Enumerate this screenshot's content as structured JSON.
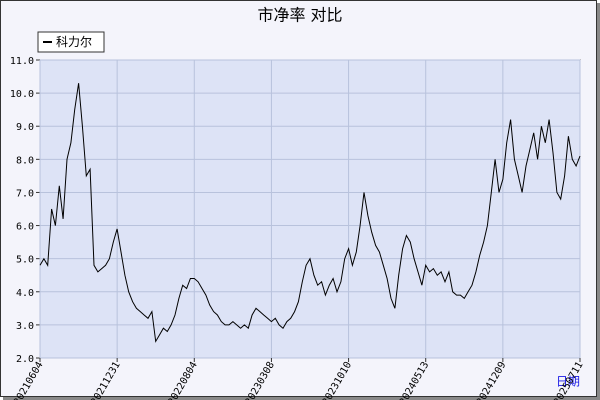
{
  "chart_data": {
    "type": "line",
    "title": "市净率  对比",
    "x_label": "日期",
    "categories": [
      "20210604",
      null,
      null,
      null,
      null,
      null,
      null,
      null,
      null,
      null,
      null,
      null,
      null,
      null,
      null,
      null,
      null,
      null,
      null,
      null,
      "20211231",
      null,
      null,
      null,
      null,
      null,
      null,
      null,
      null,
      null,
      null,
      null,
      null,
      null,
      null,
      null,
      null,
      null,
      null,
      null,
      "20220804",
      null,
      null,
      null,
      null,
      null,
      null,
      null,
      null,
      null,
      null,
      null,
      null,
      null,
      null,
      null,
      null,
      null,
      null,
      null,
      "20230308",
      null,
      null,
      null,
      null,
      null,
      null,
      null,
      null,
      null,
      null,
      null,
      null,
      null,
      null,
      null,
      null,
      null,
      null,
      null,
      "20231010",
      null,
      null,
      null,
      null,
      null,
      null,
      null,
      null,
      null,
      null,
      null,
      null,
      null,
      null,
      null,
      null,
      null,
      null,
      null,
      "20240513",
      null,
      null,
      null,
      null,
      null,
      null,
      null,
      null,
      null,
      null,
      null,
      null,
      null,
      null,
      null,
      null,
      null,
      null,
      null,
      "20241209",
      null,
      null,
      null,
      null,
      null,
      null,
      null,
      null,
      null,
      null,
      null,
      null,
      null,
      null,
      null,
      null,
      null,
      null,
      null,
      "20250711"
    ],
    "series": [
      {
        "name": "科力尔",
        "color": "#000000",
        "values": [
          4.8,
          5.0,
          4.8,
          6.5,
          6.0,
          7.2,
          6.2,
          8.0,
          8.5,
          9.5,
          10.3,
          9.0,
          7.5,
          7.7,
          4.8,
          4.6,
          4.7,
          4.8,
          5.0,
          5.5,
          5.9,
          5.2,
          4.5,
          4.0,
          3.7,
          3.5,
          3.4,
          3.3,
          3.2,
          3.4,
          2.5,
          2.7,
          2.9,
          2.8,
          3.0,
          3.3,
          3.8,
          4.2,
          4.1,
          4.4,
          4.4,
          4.3,
          4.1,
          3.9,
          3.6,
          3.4,
          3.3,
          3.1,
          3.0,
          3.0,
          3.1,
          3.0,
          2.9,
          3.0,
          2.9,
          3.3,
          3.5,
          3.4,
          3.3,
          3.2,
          3.1,
          3.2,
          3.0,
          2.9,
          3.1,
          3.2,
          3.4,
          3.7,
          4.3,
          4.8,
          5.0,
          4.5,
          4.2,
          4.3,
          3.9,
          4.2,
          4.4,
          4.0,
          4.3,
          5.0,
          5.3,
          4.8,
          5.2,
          6.0,
          7.0,
          6.3,
          5.8,
          5.4,
          5.2,
          4.8,
          4.4,
          3.8,
          3.5,
          4.5,
          5.3,
          5.7,
          5.5,
          5.0,
          4.6,
          4.2,
          4.8,
          4.6,
          4.7,
          4.5,
          4.6,
          4.3,
          4.6,
          4.0,
          3.9,
          3.9,
          3.8,
          4.0,
          4.2,
          4.6,
          5.1,
          5.5,
          6.0,
          7.0,
          8.0,
          7.0,
          7.4,
          8.5,
          9.2,
          8.0,
          7.5,
          7.0,
          7.8,
          8.3,
          8.8,
          8.0,
          9.0,
          8.5,
          9.2,
          8.2,
          7.0,
          6.8,
          7.5,
          8.7,
          8.0,
          7.8,
          8.1
        ]
      }
    ],
    "ylim": [
      2,
      11
    ],
    "yticks": [
      {
        "value": 2,
        "label": "2.0"
      },
      {
        "value": 3,
        "label": "3.0"
      },
      {
        "value": 4,
        "label": "4.0"
      },
      {
        "value": 5,
        "label": "5.0"
      },
      {
        "value": 6,
        "label": "6.0"
      },
      {
        "value": 7,
        "label": "7.0"
      },
      {
        "value": 8,
        "label": "8.0"
      },
      {
        "value": 9,
        "label": "9.0"
      },
      {
        "value": 10,
        "label": "10.0"
      },
      {
        "value": 11,
        "label": "11.0"
      }
    ],
    "grid": true,
    "legend": "top-left"
  }
}
